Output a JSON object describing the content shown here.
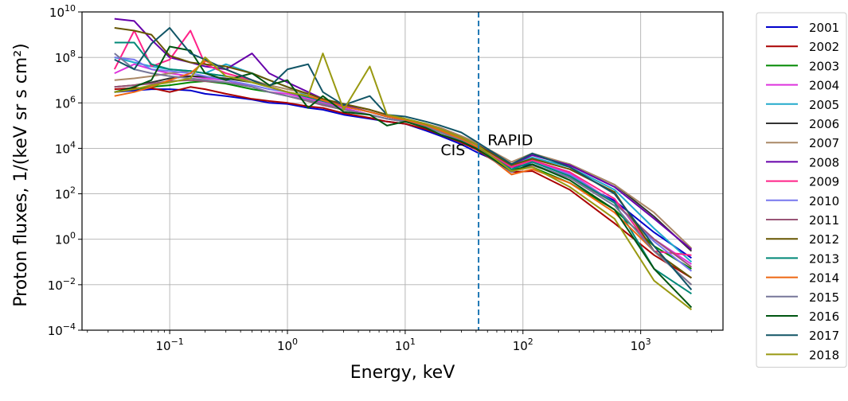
{
  "chart_data": {
    "type": "line",
    "xlabel": "Energy, keV",
    "ylabel": "Proton fluxes, 1/(keV sr s cm²)",
    "x_scale": "log",
    "y_scale": "log",
    "xlim": [
      0.018,
      5000
    ],
    "ylim": [
      0.0001,
      10000000000
    ],
    "grid": true,
    "legend_position": "outside-right",
    "x_ticks": [
      {
        "value": 0.1,
        "base": "10",
        "exp": "−1"
      },
      {
        "value": 1,
        "base": "10",
        "exp": "0"
      },
      {
        "value": 10,
        "base": "10",
        "exp": "1"
      },
      {
        "value": 100,
        "base": "10",
        "exp": "2"
      },
      {
        "value": 1000,
        "base": "10",
        "exp": "3"
      }
    ],
    "y_ticks": [
      {
        "value": 0.0001,
        "base": "10",
        "exp": "−4"
      },
      {
        "value": 0.01,
        "base": "10",
        "exp": "−2"
      },
      {
        "value": 1,
        "base": "10",
        "exp": "0"
      },
      {
        "value": 100,
        "base": "10",
        "exp": "2"
      },
      {
        "value": 10000,
        "base": "10",
        "exp": "4"
      },
      {
        "value": 1000000,
        "base": "10",
        "exp": "6"
      },
      {
        "value": 100000000,
        "base": "10",
        "exp": "8"
      },
      {
        "value": 10000000000,
        "base": "10",
        "exp": "10"
      }
    ],
    "boundary_line": {
      "x": 42,
      "color": "#1f77b4",
      "style": "dashed"
    },
    "annotations": [
      {
        "text": "CIS",
        "x": 20,
        "y": 5000
      },
      {
        "text": "RAPID",
        "x": 50,
        "y": 14000
      }
    ],
    "x": [
      0.034,
      0.05,
      0.07,
      0.1,
      0.15,
      0.2,
      0.3,
      0.5,
      0.7,
      1.0,
      1.5,
      2.0,
      3.0,
      5.0,
      7.0,
      10,
      15,
      20,
      30,
      40,
      80,
      120,
      250,
      600,
      1300,
      2700
    ],
    "series": [
      {
        "name": "2001",
        "color": "#0000cc",
        "values": [
          3000000.0,
          3500000.0,
          4000000.0,
          4000000.0,
          3500000.0,
          2500000.0,
          2000000.0,
          1400000.0,
          1000000.0,
          900000.0,
          600000.0,
          500000.0,
          300000.0,
          200000.0,
          150000.0,
          120000.0,
          60000.0,
          35000.0,
          15000.0,
          7000.0,
          1500.0,
          2000.0,
          500,
          50,
          2,
          0.15
        ]
      },
      {
        "name": "2002",
        "color": "#aa0000",
        "values": [
          4000000.0,
          4500000.0,
          4500000.0,
          3000000.0,
          5000000.0,
          4000000.0,
          2500000.0,
          1500000.0,
          1200000.0,
          1000000.0,
          700000.0,
          600000.0,
          350000.0,
          220000.0,
          150000.0,
          120000.0,
          70000.0,
          40000.0,
          18000.0,
          9000.0,
          900,
          1000,
          150,
          5,
          0.2,
          0.02
        ]
      },
      {
        "name": "2003",
        "color": "#008800",
        "values": [
          3000000.0,
          4000000.0,
          5000000.0,
          6000000.0,
          8000000.0,
          9000000.0,
          7000000.0,
          4000000.0,
          3000000.0,
          2000000.0,
          1200000.0,
          800000.0,
          500000.0,
          300000.0,
          200000.0,
          150000.0,
          90000.0,
          60000.0,
          25000.0,
          12000.0,
          1200,
          1500,
          300,
          20,
          0.5,
          0.05
        ]
      },
      {
        "name": "2004",
        "color": "#dd33dd",
        "values": [
          20000000.0,
          50000000.0,
          30000000.0,
          20000000.0,
          15000000.0,
          12000000.0,
          10000000.0,
          5000000.0,
          3000000.0,
          2500000.0,
          1500000.0,
          1000000.0,
          600000.0,
          300000.0,
          200000.0,
          160000.0,
          100000.0,
          60000.0,
          25000.0,
          12000.0,
          1500,
          3000,
          800,
          40,
          1,
          0.08
        ]
      },
      {
        "name": "2005",
        "color": "#22aacc",
        "values": [
          100000000.0,
          60000000.0,
          40000000.0,
          30000000.0,
          25000000.0,
          20000000.0,
          50000000.0,
          20000000.0,
          10000000.0,
          5000000.0,
          2000000.0,
          1200000.0,
          700000.0,
          400000.0,
          250000.0,
          180000.0,
          100000.0,
          60000.0,
          30000.0,
          15000.0,
          2000,
          4000,
          1500,
          150,
          3,
          0.1
        ]
      },
      {
        "name": "2006",
        "color": "#333333",
        "values": [
          5000000.0,
          6000000.0,
          8000000.0,
          12000000.0,
          15000000.0,
          14000000.0,
          12000000.0,
          8000000.0,
          5000000.0,
          3000000.0,
          1800000.0,
          1200000.0,
          700000.0,
          400000.0,
          250000.0,
          180000.0,
          110000.0,
          70000.0,
          30000.0,
          15000.0,
          2000,
          5000,
          2000,
          250,
          10,
          0.3
        ]
      },
      {
        "name": "2007",
        "color": "#aa8866",
        "values": [
          10000000.0,
          12000000.0,
          15000000.0,
          20000000.0,
          25000000.0,
          20000000.0,
          15000000.0,
          10000000.0,
          6000000.0,
          4000000.0,
          2500000.0,
          1500000.0,
          900000.0,
          500000.0,
          300000.0,
          200000.0,
          120000.0,
          80000.0,
          35000.0,
          18000.0,
          2500,
          6000,
          2000,
          250,
          15,
          0.4
        ]
      },
      {
        "name": "2008",
        "color": "#6600aa",
        "values": [
          5000000000.0,
          4000000000.0,
          600000000.0,
          100000000.0,
          60000000.0,
          40000000.0,
          30000000.0,
          150000000.0,
          20000000.0,
          8000000.0,
          3000000.0,
          1500000.0,
          800000.0,
          400000.0,
          250000.0,
          180000.0,
          110000.0,
          70000.0,
          30000.0,
          15000.0,
          2000,
          5000,
          1800,
          200,
          8,
          0.35
        ]
      },
      {
        "name": "2009",
        "color": "#ff2288",
        "values": [
          30000000.0,
          1500000000.0,
          40000000.0,
          80000000.0,
          1500000000.0,
          50000000.0,
          20000000.0,
          10000000.0,
          5000000.0,
          3000000.0,
          2000000.0,
          1200000.0,
          700000.0,
          400000.0,
          250000.0,
          180000.0,
          100000.0,
          60000.0,
          25000.0,
          12000.0,
          1500,
          3000,
          900,
          60,
          0.3,
          0.2
        ]
      },
      {
        "name": "2010",
        "color": "#7777ee",
        "values": [
          100000000.0,
          80000000.0,
          30000000.0,
          25000000.0,
          20000000.0,
          15000000.0,
          10000000.0,
          6000000.0,
          4000000.0,
          3000000.0,
          1800000.0,
          1200000.0,
          700000.0,
          400000.0,
          250000.0,
          180000.0,
          100000.0,
          60000.0,
          25000.0,
          12000.0,
          1200,
          2500,
          700,
          40,
          0.8,
          0.04
        ]
      },
      {
        "name": "2011",
        "color": "#995577",
        "values": [
          5000000.0,
          6000000.0,
          7000000.0,
          9000000.0,
          10000000.0,
          9000000.0,
          8000000.0,
          5000000.0,
          3000000.0,
          2000000.0,
          1200000.0,
          800000.0,
          500000.0,
          300000.0,
          200000.0,
          150000.0,
          90000.0,
          50000.0,
          22000.0,
          10000.0,
          1000,
          1800,
          500,
          40,
          1,
          0.06
        ]
      },
      {
        "name": "2012",
        "color": "#665500",
        "values": [
          2000000000.0,
          1500000000.0,
          1000000000.0,
          120000000.0,
          60000000.0,
          50000000.0,
          40000000.0,
          20000000.0,
          10000000.0,
          5000000.0,
          2500000.0,
          1500000.0,
          900000.0,
          500000.0,
          300000.0,
          200000.0,
          110000.0,
          70000.0,
          30000.0,
          15000.0,
          1800,
          3500,
          1200,
          120,
          0.3,
          0.02
        ]
      },
      {
        "name": "2013",
        "color": "#008877",
        "values": [
          450000000.0,
          450000000.0,
          50000000.0,
          30000000.0,
          25000000.0,
          20000000.0,
          15000000.0,
          8000000.0,
          5000000.0,
          3000000.0,
          1800000.0,
          1200000.0,
          700000.0,
          400000.0,
          250000.0,
          180000.0,
          100000.0,
          60000.0,
          25000.0,
          12000.0,
          1200,
          2500,
          600,
          40,
          0.05,
          0.004
        ]
      },
      {
        "name": "2014",
        "color": "#ee6611",
        "values": [
          2000000.0,
          3000000.0,
          5000000.0,
          10000000.0,
          20000000.0,
          70000000.0,
          30000000.0,
          10000000.0,
          5000000.0,
          3000000.0,
          2000000.0,
          1300000.0,
          700000.0,
          400000.0,
          250000.0,
          180000.0,
          100000.0,
          60000.0,
          25000.0,
          12000.0,
          700,
          1200,
          300,
          15,
          0.3,
          0.01
        ]
      },
      {
        "name": "2015",
        "color": "#777799",
        "values": [
          150000000.0,
          30000000.0,
          20000000.0,
          15000000.0,
          12000000.0,
          10000000.0,
          8000000.0,
          5000000.0,
          3000000.0,
          2000000.0,
          1300000.0,
          900000.0,
          500000.0,
          300000.0,
          200000.0,
          150000.0,
          90000.0,
          50000.0,
          22000.0,
          10000.0,
          900,
          2000,
          500,
          30,
          0.3,
          0.01
        ]
      },
      {
        "name": "2016",
        "color": "#005511",
        "values": [
          3000000.0,
          5000000.0,
          10000000.0,
          300000000.0,
          200000000.0,
          20000000.0,
          10000000.0,
          20000000.0,
          6000000.0,
          10000000.0,
          600000.0,
          2000000.0,
          400000.0,
          300000.0,
          100000.0,
          150000.0,
          80000.0,
          40000.0,
          20000.0,
          10000.0,
          1000,
          2000,
          400,
          20,
          0.05,
          0.001
        ]
      },
      {
        "name": "2017",
        "color": "#115566",
        "values": [
          80000000.0,
          30000000.0,
          400000000.0,
          2000000000.0,
          150000000.0,
          80000000.0,
          30000000.0,
          10000000.0,
          5000000.0,
          30000000.0,
          50000000.0,
          3000000.0,
          800000.0,
          2000000.0,
          300000.0,
          250000.0,
          150000.0,
          100000.0,
          50000.0,
          20000.0,
          2000,
          6000,
          1500,
          100,
          0.5,
          0.006
        ]
      },
      {
        "name": "2018",
        "color": "#999911",
        "values": [
          3000000.0,
          4000000.0,
          6000000.0,
          8000000.0,
          12000000.0,
          100000000.0,
          15000000.0,
          8000000.0,
          5000000.0,
          3000000.0,
          2000000.0,
          150000000.0,
          500000.0,
          40000000.0,
          300000.0,
          200000.0,
          120000.0,
          70000.0,
          30000.0,
          15000.0,
          1000,
          1500,
          200,
          8,
          0.015,
          0.0008
        ]
      }
    ]
  }
}
